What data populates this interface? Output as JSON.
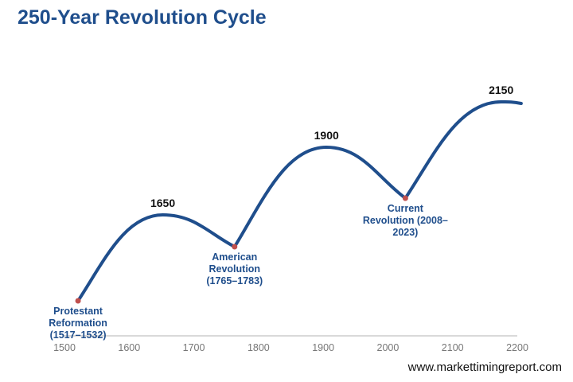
{
  "chart_data": {
    "type": "line",
    "title": "250-Year Revolution Cycle",
    "xlabel": "",
    "ylabel": "",
    "xlim": [
      1500,
      2200
    ],
    "x_ticks": [
      "1500",
      "1600",
      "1700",
      "1800",
      "1900",
      "2000",
      "2100",
      "2200"
    ],
    "grid": false,
    "y_axis_shown": false,
    "line_color": "#1f4e8c",
    "marker_color": "#c0504d",
    "points": [
      {
        "x": 1521,
        "y": 44,
        "kind": "start",
        "label": "Protestant Reformation (1517–1532)",
        "label_lines": [
          "Protestant",
          "Reformation",
          "(1517–1532)"
        ]
      },
      {
        "x": 1652,
        "y": 152,
        "kind": "peak",
        "label": "1650"
      },
      {
        "x": 1763,
        "y": 112,
        "kind": "trough",
        "label": "American Revolution (1765–1783)",
        "label_lines": [
          "American",
          "Revolution",
          "(1765–1783)"
        ]
      },
      {
        "x": 1905,
        "y": 237,
        "kind": "peak",
        "label": "1900"
      },
      {
        "x": 2027,
        "y": 173,
        "kind": "trough",
        "label": "Current Revolution (2008–2023)",
        "label_lines": [
          "Current",
          "Revolution (2008–",
          "2023)"
        ]
      },
      {
        "x": 2175,
        "y": 294,
        "kind": "peak",
        "label": "2150"
      },
      {
        "x": 2206,
        "y": 292,
        "kind": "end",
        "label": ""
      }
    ]
  },
  "source": "www.markettimingreport.com"
}
